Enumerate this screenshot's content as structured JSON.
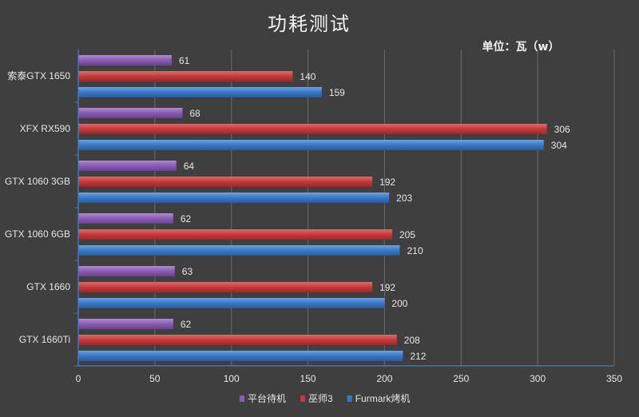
{
  "chart_data": {
    "type": "bar",
    "orientation": "horizontal",
    "title": "功耗测试",
    "unit_label": "单位：瓦（w）",
    "categories": [
      "索泰GTX 1650",
      "XFX RX590",
      "GTX 1060 3GB",
      "GTX 1060 6GB",
      "GTX 1660",
      "GTX 1660Ti"
    ],
    "series": [
      {
        "name": "平台待机",
        "color": "#8a5cb0",
        "values": [
          61,
          68,
          64,
          62,
          63,
          62
        ]
      },
      {
        "name": "巫师3",
        "color": "#c23b3b",
        "values": [
          140,
          306,
          192,
          205,
          192,
          208
        ]
      },
      {
        "name": "Furmark烤机",
        "color": "#3a78c4",
        "values": [
          159,
          304,
          203,
          210,
          200,
          212
        ]
      }
    ],
    "xlim": [
      0,
      350
    ],
    "xticks": [
      0,
      50,
      100,
      150,
      200,
      250,
      300,
      350
    ],
    "grid": true,
    "legend_position": "bottom"
  }
}
